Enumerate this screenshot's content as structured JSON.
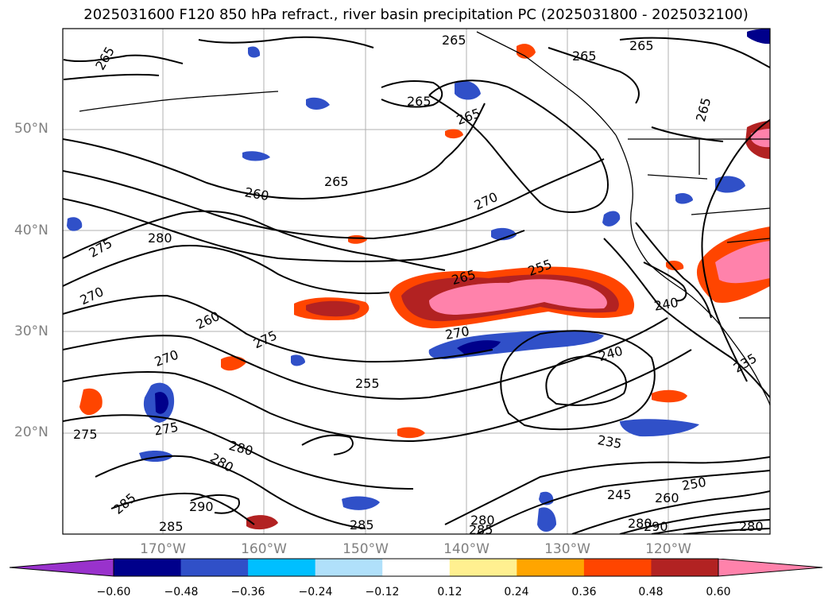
{
  "title": "2025031600 F120 850 hPa refract., river basin precipitation PC (2025031800 - 2025032100)",
  "map": {
    "lat_labels": [
      "50°N",
      "40°N",
      "30°N",
      "20°N"
    ],
    "lon_labels": [
      "170°W",
      "160°W",
      "150°W",
      "140°W",
      "130°W",
      "120°W"
    ],
    "contour_labels": [
      "265",
      "265",
      "265",
      "265",
      "265",
      "265",
      "265",
      "265",
      "260",
      "270",
      "275",
      "280",
      "270",
      "260",
      "275",
      "270",
      "265",
      "255",
      "270",
      "240",
      "240",
      "235",
      "255",
      "275",
      "275",
      "280",
      "280",
      "285",
      "290",
      "285",
      "285",
      "280",
      "285",
      "245",
      "250",
      "260",
      "280",
      "290",
      "280",
      "235"
    ]
  },
  "colorbar": {
    "ticks": [
      "−0.60",
      "−0.48",
      "−0.36",
      "−0.24",
      "−0.12",
      "0.12",
      "0.24",
      "0.36",
      "0.48",
      "0.60"
    ],
    "colors": [
      "#9932cc",
      "#00008b",
      "#3050c8",
      "#00bfff",
      "#b0e0fa",
      "#ffffff",
      "#fff090",
      "#ffa500",
      "#ff4500",
      "#b22222",
      "#ff82ab"
    ]
  }
}
